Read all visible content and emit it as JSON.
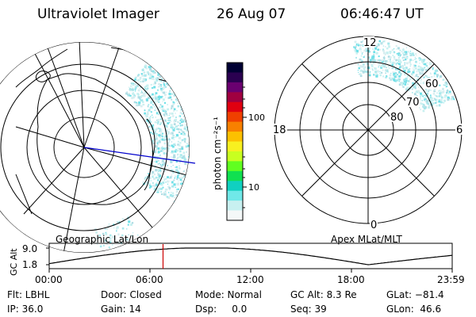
{
  "header": {
    "instrument": "Ultraviolet Imager",
    "date": "26 Aug 07",
    "time": "06:46:47 UT"
  },
  "left_panel": {
    "label": "Geographic Lat/Lon"
  },
  "right_panel": {
    "label": "Apex MLat/MLT",
    "mlt_labels": {
      "top": "12",
      "left": "18",
      "right": "6",
      "bottom": "0"
    },
    "lat_labels": [
      "60",
      "70",
      "80"
    ]
  },
  "colorbar": {
    "unit": "photon cm⁻²s⁻¹",
    "ticks": [
      "100",
      "10"
    ],
    "colors": [
      "#000033",
      "#2a0050",
      "#6a0070",
      "#a00040",
      "#e00010",
      "#f04000",
      "#f88000",
      "#fcc000",
      "#f8f020",
      "#c8ff20",
      "#60ff20",
      "#10e050",
      "#10d0c0",
      "#70e8e8",
      "#c8f0f0",
      "#f4f8f8"
    ]
  },
  "altitude_plot": {
    "ylabel": "GC Alt",
    "yticks": [
      "9.0",
      "1.8"
    ],
    "xticks": [
      "00:00",
      "06:00",
      "12:00",
      "18:00",
      "23:59"
    ],
    "marker_time_hours": 6.78,
    "marker_color": "#cc0000"
  },
  "status": {
    "flt": "Flt: LBHL",
    "door": "Door: Closed",
    "mode": "Mode: Normal",
    "gc_alt": "GC Alt: 8.3 Re",
    "glat": "GLat: −81.4",
    "ip": "IP: 36.0",
    "gain": "Gain: 14",
    "dsp": "Dsp:     0.0",
    "seq": "Seq: 39",
    "glon": "GLon:  46.6"
  }
}
